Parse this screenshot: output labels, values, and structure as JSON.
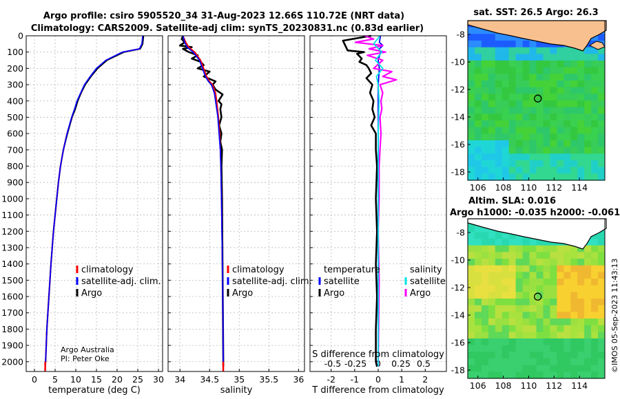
{
  "figure": {
    "title_line1": "Argo profile: csiro 5905520_34 31-Aug-2023 12.66S 110.72E (NRT data)",
    "title_line2": "Climatology: CARS2009. Satellite-adj clim: synTS_20230831.nc (0.83d earlier)",
    "credit_line1": "Argo Australia",
    "credit_line2": "PI: Peter Oke",
    "timestamp": "©IMOS 05-Sep-2023 11:43:13"
  },
  "colors": {
    "climatology": "#ff0000",
    "satellite": "#0000ff",
    "argo": "#000000",
    "sal_satellite": "#00e5e5",
    "sal_argo": "#ff00ff",
    "land": "#f9c08f"
  },
  "chart_data": [
    {
      "type": "line",
      "name": "temperature",
      "xlabel": "temperature (deg C)",
      "ylabel": "",
      "xlim": [
        -2,
        31
      ],
      "ylim": [
        2060,
        0
      ],
      "xticks": [
        0,
        5,
        10,
        15,
        20,
        25,
        30
      ],
      "yticks": [
        0,
        100,
        200,
        300,
        400,
        500,
        600,
        700,
        800,
        900,
        1000,
        1100,
        1200,
        1300,
        1400,
        1500,
        1600,
        1700,
        1800,
        1900,
        2000
      ],
      "legend": [
        "climatology",
        "satellite-adj. clim.",
        "Argo"
      ],
      "depth": [
        0,
        50,
        80,
        100,
        150,
        200,
        250,
        300,
        350,
        400,
        450,
        500,
        600,
        700,
        800,
        900,
        1000,
        1200,
        1400,
        1600,
        1800,
        2000,
        2030
      ],
      "series": [
        {
          "name": "climatology",
          "values": [
            26.3,
            26.1,
            25.5,
            21.5,
            17.5,
            15.2,
            13.6,
            12.2,
            11.3,
            10.4,
            9.8,
            9.1,
            7.9,
            7.0,
            6.3,
            5.8,
            5.4,
            4.6,
            4.0,
            3.5,
            3.0,
            2.7,
            2.6
          ]
        },
        {
          "name": "satellite-adj. clim.",
          "values": [
            26.2,
            26.0,
            25.4,
            21.3,
            17.3,
            15.0,
            13.5,
            12.1,
            11.2,
            10.3,
            9.7,
            9.0,
            7.9,
            7.0,
            6.3,
            5.8,
            5.4,
            4.6,
            4.0,
            3.5,
            3.0,
            2.7,
            2.6
          ]
        },
        {
          "name": "Argo",
          "values": [
            26.4,
            26.2,
            25.6,
            21.7,
            17.6,
            15.3,
            13.7,
            12.3,
            11.3,
            10.5,
            9.9,
            9.1,
            8.0,
            7.0,
            6.3,
            5.8,
            5.4,
            4.6,
            4.0,
            3.5,
            3.0,
            2.7,
            2.6
          ]
        }
      ]
    },
    {
      "type": "line",
      "name": "salinity",
      "xlabel": "salinity",
      "xlim": [
        33.8,
        36.1
      ],
      "ylim": [
        2060,
        0
      ],
      "xticks": [
        34,
        34.5,
        35,
        35.5,
        36
      ],
      "legend": [
        "climatology",
        "satellite-adj. clim.",
        "Argo"
      ],
      "series": [
        {
          "name": "climatology",
          "depth": [
            0,
            40,
            70,
            100,
            150,
            200,
            250,
            280,
            300,
            350,
            400,
            500,
            600,
            700,
            800,
            1000,
            1500,
            2000,
            2030
          ],
          "values": [
            34.05,
            34.1,
            34.15,
            34.25,
            34.35,
            34.4,
            34.45,
            34.5,
            34.55,
            34.6,
            34.62,
            34.65,
            34.67,
            34.68,
            34.69,
            34.7,
            34.72,
            34.73,
            34.73
          ]
        },
        {
          "name": "satellite-adj. clim.",
          "depth": [
            0,
            40,
            70,
            100,
            150,
            200,
            250,
            280,
            300,
            350,
            400,
            500,
            600,
            700,
            800,
            1000,
            1500,
            2000,
            2030
          ],
          "values": [
            34.05,
            34.08,
            34.12,
            34.22,
            34.33,
            34.38,
            34.43,
            34.48,
            34.53,
            34.58,
            34.6,
            34.64,
            34.66,
            34.68,
            34.69,
            34.7,
            34.72,
            34.73,
            34.73
          ]
        },
        {
          "name": "Argo",
          "depth": [
            0,
            20,
            40,
            60,
            70,
            80,
            90,
            100,
            120,
            140,
            160,
            180,
            200,
            220,
            250,
            280,
            300,
            330,
            360,
            400,
            420,
            450,
            500,
            550,
            600,
            650,
            700,
            800,
            1000,
            1500,
            2000,
            2030
          ],
          "values": [
            34.05,
            34.03,
            34.08,
            34.0,
            34.2,
            34.05,
            34.1,
            34.15,
            34.3,
            34.2,
            34.35,
            34.4,
            34.3,
            34.5,
            34.4,
            34.6,
            34.55,
            34.6,
            34.72,
            34.65,
            34.7,
            34.68,
            34.7,
            34.66,
            34.7,
            34.68,
            34.71,
            34.7,
            34.71,
            34.72,
            34.73,
            34.73
          ]
        }
      ]
    },
    {
      "type": "line",
      "name": "difference",
      "xlabel": "T difference from climatology",
      "xlabel_top": "S difference from climatology",
      "xlim": [
        -2.9,
        2.9
      ],
      "ylim": [
        2060,
        0
      ],
      "xticks": [
        -2,
        -1,
        0,
        1,
        2
      ],
      "s_ticks": [
        -0.5,
        -0.25,
        0,
        0.25,
        0.5
      ],
      "s_tick_labels": [
        "-0.5",
        "-0.25",
        "0",
        "0.25",
        "0.5"
      ],
      "legend_headers": [
        "temperature",
        "salinity"
      ],
      "legend_temperature": [
        "satellite",
        "Argo"
      ],
      "legend_salinity": [
        "satellite",
        "Argo"
      ],
      "series": [
        {
          "name": "T satellite",
          "depth": [
            0,
            40,
            60,
            80,
            100,
            150,
            200,
            300,
            400,
            600,
            1000,
            1500,
            2000,
            2030
          ],
          "values": [
            0.1,
            0.05,
            0.2,
            0.05,
            0.1,
            0.0,
            0.05,
            0.0,
            0.0,
            0.0,
            0.0,
            0.0,
            0.0,
            0.0
          ]
        },
        {
          "name": "T Argo",
          "depth": [
            0,
            30,
            60,
            90,
            100,
            110,
            140,
            160,
            180,
            200,
            230,
            260,
            300,
            350,
            400,
            450,
            500,
            550,
            600,
            700,
            800,
            1000,
            1200,
            1400,
            1600,
            1800,
            2000,
            2030
          ],
          "values": [
            -0.3,
            -1.5,
            -1.4,
            -1.3,
            -0.6,
            -0.9,
            -0.7,
            -0.8,
            -0.5,
            -0.4,
            -0.3,
            -0.5,
            -0.25,
            -0.35,
            -0.2,
            -0.25,
            -0.15,
            -0.3,
            -0.1,
            -0.1,
            -0.05,
            -0.1,
            -0.05,
            -0.1,
            -0.05,
            -0.1,
            -0.1,
            -0.05
          ]
        },
        {
          "name": "S satellite",
          "depth": [
            0,
            50,
            100,
            150,
            200,
            250,
            300,
            400,
            600,
            1000,
            1500,
            2000,
            2030
          ],
          "values": [
            0.02,
            -0.05,
            0.04,
            -0.03,
            0.05,
            -0.02,
            0.0,
            0.01,
            0.0,
            0.0,
            0.0,
            0.0,
            0.0
          ]
        },
        {
          "name": "S Argo",
          "depth": [
            0,
            20,
            40,
            60,
            80,
            100,
            120,
            150,
            200,
            220,
            250,
            270,
            300,
            350,
            400,
            450,
            500,
            600,
            700,
            800,
            1000,
            1200,
            1500,
            2000,
            2030
          ],
          "values": [
            -0.15,
            -0.05,
            -0.25,
            0.05,
            -0.1,
            0.08,
            -0.12,
            0.05,
            -0.05,
            0.15,
            0.05,
            0.2,
            0.02,
            0.05,
            0.03,
            0.04,
            0.02,
            0.03,
            0.02,
            0.01,
            0.01,
            0.0,
            0.01,
            0.0,
            0.0
          ]
        }
      ]
    },
    {
      "type": "heatmap",
      "name": "sst_map",
      "title": "sat. SST: 26.5 Argo: 26.3",
      "xlim": [
        105.2,
        116
      ],
      "ylim": [
        -18.6,
        -7
      ],
      "xticks": [
        106,
        108,
        110,
        112,
        114
      ],
      "yticks": [
        -8,
        -10,
        -12,
        -14,
        -16,
        -18
      ],
      "float_position": [
        110.72,
        -12.66
      ]
    },
    {
      "type": "heatmap",
      "name": "sla_map",
      "title_line1": "Altim. SLA: 0.016",
      "title_line2": "Argo h1000: -0.035 h2000: -0.061",
      "xlim": [
        105.2,
        116
      ],
      "ylim": [
        -18.6,
        -7
      ],
      "xticks": [
        106,
        108,
        110,
        112,
        114
      ],
      "yticks": [
        -8,
        -10,
        -12,
        -14,
        -16,
        -18
      ],
      "float_position": [
        110.72,
        -12.66
      ]
    }
  ]
}
